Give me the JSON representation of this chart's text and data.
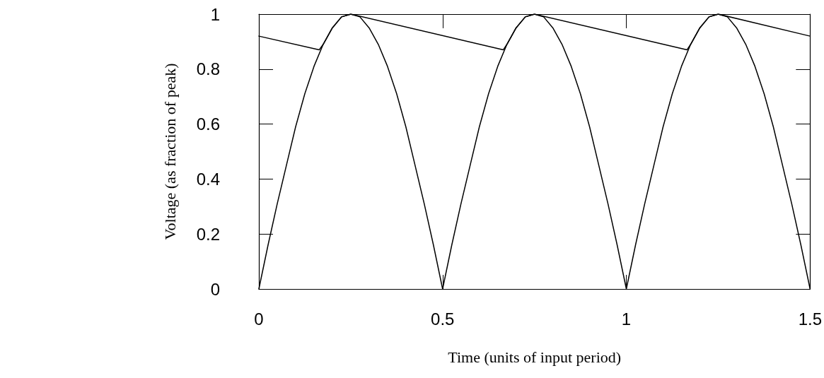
{
  "chart_data": {
    "type": "line",
    "xlabel": "Time (units of input period)",
    "ylabel": "Voltage (as fraction of peak)",
    "xlim": [
      0,
      1.5
    ],
    "xticks": [
      0,
      0.5,
      1,
      1.5
    ],
    "ylim": [
      0,
      1
    ],
    "yticks": [
      0,
      0.2,
      0.4,
      0.6,
      0.8,
      1
    ],
    "grid": false,
    "marker": "none",
    "line_style": "solid",
    "series": [
      {
        "color": "#000000",
        "x": [
          0,
          0.025,
          0.05,
          0.075,
          0.1,
          0.125,
          0.15,
          0.175,
          0.2,
          0.225,
          0.25,
          0.275,
          0.3,
          0.325,
          0.35,
          0.375,
          0.4,
          0.425,
          0.45,
          0.475,
          0.5,
          0.525,
          0.55,
          0.575,
          0.6,
          0.625,
          0.65,
          0.675,
          0.7,
          0.725,
          0.75,
          0.775,
          0.8,
          0.825,
          0.85,
          0.875,
          0.9,
          0.925,
          0.95,
          0.975,
          1,
          1.025,
          1.05,
          1.075,
          1.1,
          1.125,
          1.15,
          1.175,
          1.2,
          1.225,
          1.25,
          1.275,
          1.3,
          1.325,
          1.35,
          1.375,
          1.4,
          1.425,
          1.45,
          1.475,
          1.5
        ],
        "values": [
          0,
          0.16,
          0.31,
          0.45,
          0.59,
          0.71,
          0.81,
          0.89,
          0.95,
          0.99,
          1,
          0.99,
          0.95,
          0.89,
          0.81,
          0.71,
          0.59,
          0.45,
          0.31,
          0.16,
          0,
          0.16,
          0.31,
          0.45,
          0.59,
          0.71,
          0.81,
          0.89,
          0.95,
          0.99,
          1,
          0.99,
          0.95,
          0.89,
          0.81,
          0.71,
          0.59,
          0.45,
          0.31,
          0.16,
          0,
          0.16,
          0.31,
          0.45,
          0.59,
          0.71,
          0.81,
          0.89,
          0.95,
          0.99,
          1,
          0.99,
          0.95,
          0.89,
          0.81,
          0.71,
          0.59,
          0.45,
          0.31,
          0.16,
          0
        ]
      },
      {
        "color": "#000000",
        "x": [
          0,
          0.164,
          0.175,
          0.2,
          0.225,
          0.25,
          0.665,
          0.675,
          0.7,
          0.725,
          0.75,
          1.165,
          1.175,
          1.2,
          1.225,
          1.25,
          1.5
        ],
        "values": [
          0.92,
          0.87,
          0.89,
          0.95,
          0.99,
          1,
          0.87,
          0.89,
          0.95,
          0.99,
          1,
          0.87,
          0.89,
          0.95,
          0.99,
          1,
          0.92
        ]
      }
    ]
  }
}
